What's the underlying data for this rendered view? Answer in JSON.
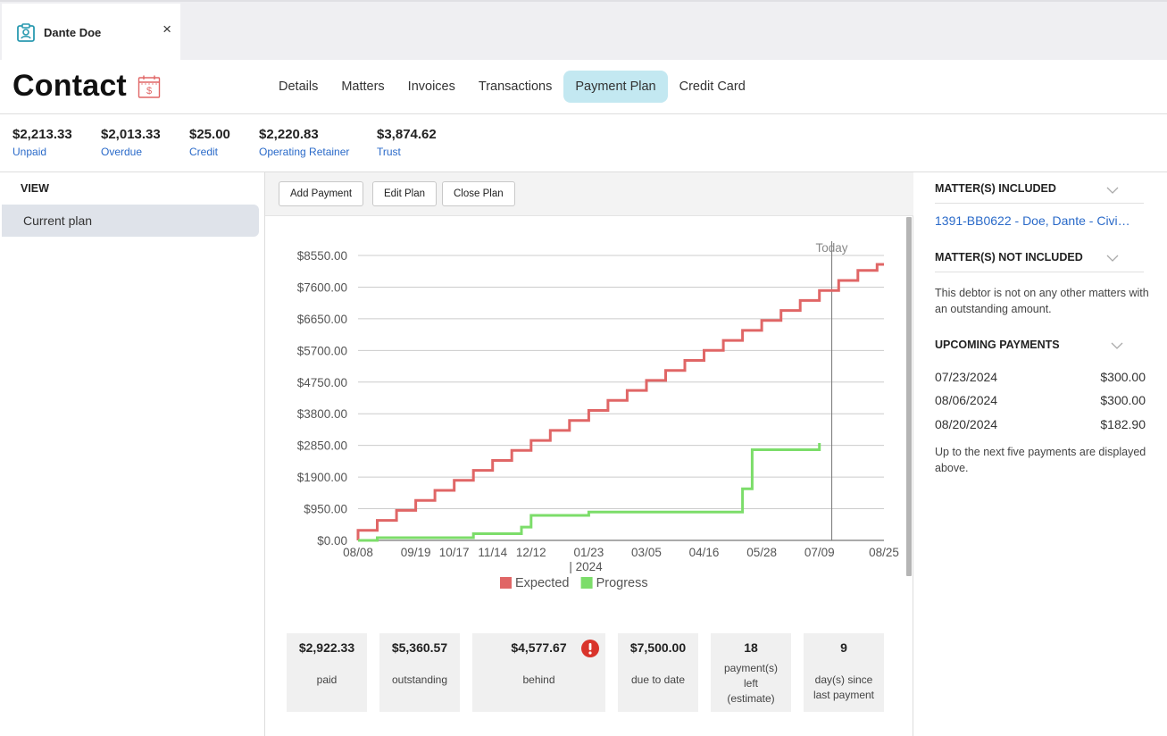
{
  "tab": {
    "name": "Dante Doe",
    "close": "×"
  },
  "header": {
    "title": "Contact",
    "nav": [
      "Details",
      "Matters",
      "Invoices",
      "Transactions",
      "Payment Plan",
      "Credit Card"
    ],
    "active_nav": "Payment Plan"
  },
  "stats": [
    {
      "value": "$2,213.33",
      "label": "Unpaid"
    },
    {
      "value": "$2,013.33",
      "label": "Overdue"
    },
    {
      "value": "$25.00",
      "label": "Credit"
    },
    {
      "value": "$2,220.83",
      "label": "Operating Retainer"
    },
    {
      "value": "$3,874.62",
      "label": "Trust"
    }
  ],
  "sidebar": {
    "heading": "VIEW",
    "items": [
      "Current plan"
    ]
  },
  "toolbar": {
    "add": "Add Payment",
    "edit": "Edit Plan",
    "close": "Close Plan"
  },
  "chart_data": {
    "type": "line",
    "title": "",
    "y_ticks": [
      "$8550.00",
      "$7600.00",
      "$6650.00",
      "$5700.00",
      "$4750.00",
      "$3800.00",
      "$2850.00",
      "$1900.00",
      "$950.00",
      "$0.00"
    ],
    "ylim": [
      0,
      8550
    ],
    "x_ticks": [
      "08/08",
      "09/19",
      "10/17",
      "11/14",
      "12/12",
      "01/23",
      "03/05",
      "04/16",
      "05/28",
      "07/09",
      "08/25"
    ],
    "x_year_label": "| 2024",
    "xlim": [
      "2023-08-08",
      "2024-08-25"
    ],
    "today_label": "Today",
    "today_date": "2024-07-18",
    "legend": [
      "Expected",
      "Progress"
    ],
    "colors": {
      "Expected": "#e06666",
      "Progress": "#7cdd6a"
    },
    "series": [
      {
        "name": "Expected",
        "points": [
          [
            "2023-08-08",
            0
          ],
          [
            "2023-08-08",
            300
          ],
          [
            "2023-08-22",
            300
          ],
          [
            "2023-08-22",
            600
          ],
          [
            "2023-09-05",
            600
          ],
          [
            "2023-09-05",
            900
          ],
          [
            "2023-09-19",
            900
          ],
          [
            "2023-09-19",
            1200
          ],
          [
            "2023-10-03",
            1200
          ],
          [
            "2023-10-03",
            1500
          ],
          [
            "2023-10-17",
            1500
          ],
          [
            "2023-10-17",
            1800
          ],
          [
            "2023-10-31",
            1800
          ],
          [
            "2023-10-31",
            2100
          ],
          [
            "2023-11-14",
            2100
          ],
          [
            "2023-11-14",
            2400
          ],
          [
            "2023-11-28",
            2400
          ],
          [
            "2023-11-28",
            2700
          ],
          [
            "2023-12-12",
            2700
          ],
          [
            "2023-12-12",
            3000
          ],
          [
            "2023-12-26",
            3000
          ],
          [
            "2023-12-26",
            3300
          ],
          [
            "2024-01-09",
            3300
          ],
          [
            "2024-01-09",
            3600
          ],
          [
            "2024-01-23",
            3600
          ],
          [
            "2024-01-23",
            3900
          ],
          [
            "2024-02-06",
            3900
          ],
          [
            "2024-02-06",
            4200
          ],
          [
            "2024-02-20",
            4200
          ],
          [
            "2024-02-20",
            4500
          ],
          [
            "2024-03-05",
            4500
          ],
          [
            "2024-03-05",
            4800
          ],
          [
            "2024-03-19",
            4800
          ],
          [
            "2024-03-19",
            5100
          ],
          [
            "2024-04-02",
            5100
          ],
          [
            "2024-04-02",
            5400
          ],
          [
            "2024-04-16",
            5400
          ],
          [
            "2024-04-16",
            5700
          ],
          [
            "2024-04-30",
            5700
          ],
          [
            "2024-04-30",
            6000
          ],
          [
            "2024-05-14",
            6000
          ],
          [
            "2024-05-14",
            6300
          ],
          [
            "2024-05-28",
            6300
          ],
          [
            "2024-05-28",
            6600
          ],
          [
            "2024-06-11",
            6600
          ],
          [
            "2024-06-11",
            6900
          ],
          [
            "2024-06-25",
            6900
          ],
          [
            "2024-06-25",
            7200
          ],
          [
            "2024-07-09",
            7200
          ],
          [
            "2024-07-09",
            7500
          ],
          [
            "2024-07-23",
            7500
          ],
          [
            "2024-07-23",
            7800
          ],
          [
            "2024-08-06",
            7800
          ],
          [
            "2024-08-06",
            8100
          ],
          [
            "2024-08-20",
            8100
          ],
          [
            "2024-08-20",
            8283
          ],
          [
            "2024-08-25",
            8283
          ]
        ]
      },
      {
        "name": "Progress",
        "points": [
          [
            "2023-08-08",
            0
          ],
          [
            "2023-08-22",
            0
          ],
          [
            "2023-08-22",
            80
          ],
          [
            "2023-10-31",
            80
          ],
          [
            "2023-10-31",
            200
          ],
          [
            "2023-12-05",
            200
          ],
          [
            "2023-12-05",
            400
          ],
          [
            "2023-12-12",
            400
          ],
          [
            "2023-12-12",
            750
          ],
          [
            "2024-01-23",
            750
          ],
          [
            "2024-01-23",
            850
          ],
          [
            "2024-05-14",
            850
          ],
          [
            "2024-05-14",
            1550
          ],
          [
            "2024-05-21",
            1550
          ],
          [
            "2024-05-21",
            2720
          ],
          [
            "2024-07-09",
            2720
          ],
          [
            "2024-07-09",
            2922.33
          ]
        ]
      }
    ]
  },
  "cards": [
    {
      "value": "$2,922.33",
      "label": [
        "paid"
      ]
    },
    {
      "value": "$5,360.57",
      "label": [
        "outstanding"
      ]
    },
    {
      "value": "$4,577.67",
      "label": [
        "behind"
      ]
    },
    {
      "value": "$7,500.00",
      "label": [
        "due to date"
      ]
    },
    {
      "value": "18",
      "label": [
        "payment(s)",
        "left",
        "(estimate)"
      ]
    },
    {
      "value": "9",
      "label": [
        "day(s) since",
        "last payment"
      ]
    }
  ],
  "right": {
    "included_h": "MATTER(S) INCLUDED",
    "matter": "1391-BB0622 - Doe, Dante - Civi…",
    "not_included_h": "MATTER(S) NOT INCLUDED",
    "not_included_note": "This debtor is not on any other matters with an outstanding amount.",
    "upcoming_h": "UPCOMING PAYMENTS",
    "payments": [
      {
        "date": "07/23/2024",
        "amount": "$300.00"
      },
      {
        "date": "08/06/2024",
        "amount": "$300.00"
      },
      {
        "date": "08/20/2024",
        "amount": "$182.90"
      }
    ],
    "upcoming_note": "Up to the next five payments are displayed above."
  }
}
